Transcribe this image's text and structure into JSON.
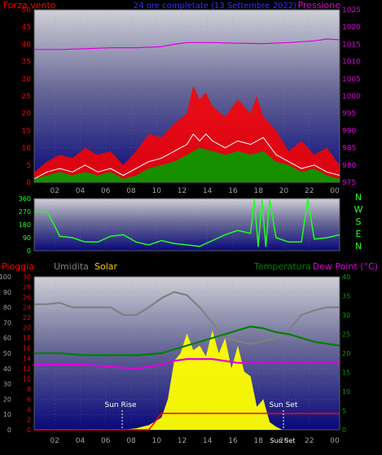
{
  "colors": {
    "background": "#000000",
    "frame": "#5a5a5a",
    "red": "#ff0000",
    "green": "#00a000",
    "magenta": "#e000e0",
    "white": "#ffffff",
    "bright_green": "#22ff22",
    "blue": "#3030ff",
    "gray": "#808080",
    "yellow": "#ffff00",
    "orange": "#ffcc00",
    "dark_green": "#008000",
    "tick_label": "#a0a0a0"
  },
  "x_tick_labels": [
    "02",
    "04",
    "06",
    "08",
    "10",
    "12",
    "14",
    "16",
    "18",
    "20",
    "22",
    "00"
  ],
  "panel1": {
    "left_title": "Forza vento",
    "center_title": "24 ore completate (13 Settembre 2022)",
    "right_title": "Pressione",
    "y_left_ticks": [
      "0",
      "5",
      "10",
      "15",
      "20",
      "25",
      "30",
      "35",
      "40",
      "45",
      "50"
    ],
    "y_right_ticks": [
      "975",
      "980",
      "985",
      "990",
      "995",
      "1000",
      "1005",
      "1010",
      "1015",
      "1020",
      "1025"
    ]
  },
  "panel2": {
    "y_ticks": [
      "0",
      "90",
      "180",
      "270",
      "360"
    ],
    "compass": [
      "N",
      "W",
      "S",
      "E",
      "N"
    ]
  },
  "panel3": {
    "title_rain": "Pioggia",
    "title_humidity": "Umidita",
    "title_solar": "Solar",
    "title_temperature": "Temperatura",
    "title_dewpoint": "Dew Point (°C)",
    "y_humidity_ticks": [
      "0",
      "10",
      "20",
      "30",
      "40",
      "50",
      "60",
      "70",
      "80",
      "90",
      "100"
    ],
    "y_rain_ticks": [
      "0",
      "2",
      "4",
      "6",
      "8",
      "10",
      "12",
      "14",
      "16",
      "18",
      "20",
      "22",
      "24",
      "26",
      "28",
      "30"
    ],
    "y_temp_ticks": [
      "0",
      "5",
      "10",
      "15",
      "20",
      "25",
      "30",
      "35",
      "40"
    ],
    "sun_rise_label": "Sun Rise",
    "sun_set_label": "Sun Set",
    "sun_set_time_label": "Sun Set"
  },
  "chart_data": [
    {
      "type": "line",
      "title": "24 ore completate (13 Settembre 2022)",
      "x_unit": "hour",
      "xlim": [
        0,
        24
      ],
      "ylim_left": [
        0,
        50
      ],
      "ylim_right": [
        975,
        1025
      ],
      "series": [
        {
          "name": "Forza vento",
          "axis": "left",
          "style": "gust",
          "x": [
            0,
            1,
            2,
            3,
            4,
            5,
            6,
            7,
            8,
            9,
            10,
            11,
            12,
            12.5,
            13,
            13.5,
            14,
            15,
            16,
            17,
            17.5,
            18,
            19,
            20,
            21,
            22,
            23,
            24
          ],
          "values": [
            3,
            6,
            8,
            7,
            10,
            8,
            9,
            5,
            9,
            14,
            13,
            17,
            20,
            28,
            24,
            26,
            22,
            19,
            24,
            20,
            25,
            19,
            15,
            9,
            12,
            8,
            10,
            5
          ]
        },
        {
          "axis": "left",
          "style": "avg",
          "x": [
            0,
            1,
            2,
            3,
            4,
            5,
            6,
            7,
            8,
            9,
            10,
            11,
            12,
            12.5,
            13,
            13.5,
            14,
            15,
            16,
            17,
            18,
            19,
            20,
            21,
            22,
            23,
            24
          ],
          "values": [
            1,
            3,
            4,
            3,
            5,
            3,
            4,
            2,
            4,
            6,
            7,
            9,
            11,
            14,
            12,
            14,
            12,
            10,
            12,
            11,
            13,
            8,
            6,
            4,
            5,
            3,
            2
          ]
        },
        {
          "axis": "left",
          "style": "mean",
          "x": [
            0,
            1,
            2,
            3,
            4,
            5,
            6,
            7,
            8,
            9,
            10,
            11,
            12,
            13,
            14,
            15,
            16,
            17,
            18,
            19,
            20,
            21,
            22,
            23,
            24
          ],
          "values": [
            1,
            2,
            3,
            2,
            3,
            2,
            3,
            1,
            2,
            4,
            5,
            6,
            8,
            10,
            9,
            8,
            9,
            8,
            9,
            6,
            5,
            3,
            4,
            2,
            1
          ]
        },
        {
          "name": "Pressione",
          "axis": "right",
          "x": [
            0,
            2,
            4,
            6,
            8,
            10,
            11,
            12,
            14,
            16,
            18,
            20,
            22,
            23,
            24
          ],
          "values": [
            1013.5,
            1013.5,
            1013.7,
            1014,
            1014,
            1014.3,
            1015,
            1015.5,
            1015.5,
            1015.3,
            1015.2,
            1015.5,
            1016,
            1016.5,
            1016.3
          ]
        }
      ]
    },
    {
      "type": "line",
      "x_unit": "hour",
      "xlim": [
        0,
        24
      ],
      "ylim": [
        0,
        360
      ],
      "series": [
        {
          "x": [
            0,
            1,
            1.5,
            2,
            3,
            4,
            5,
            6,
            7,
            8,
            9,
            10,
            11,
            12,
            13,
            14,
            15,
            16,
            17,
            17.3,
            17.6,
            17.9,
            18.2,
            18.5,
            19,
            20,
            21,
            21.5,
            22,
            23,
            24
          ],
          "values": [
            270,
            270,
            190,
            100,
            90,
            60,
            60,
            100,
            110,
            60,
            40,
            70,
            50,
            40,
            30,
            70,
            110,
            140,
            120,
            350,
            30,
            350,
            30,
            350,
            90,
            60,
            60,
            360,
            80,
            90,
            110
          ]
        }
      ]
    },
    {
      "type": "line",
      "x_unit": "hour",
      "xlim": [
        0,
        24
      ],
      "ylim_humidity": [
        0,
        100
      ],
      "ylim_rain": [
        0,
        30
      ],
      "ylim_temperature": [
        0,
        40
      ],
      "series": [
        {
          "name": "Umidita",
          "axis": "humidity",
          "x": [
            0,
            1,
            2,
            3,
            4,
            5,
            6,
            7,
            8,
            9,
            10,
            11,
            12,
            13,
            14,
            15,
            16,
            17,
            18,
            19,
            20,
            21,
            22,
            23,
            24
          ],
          "values": [
            82,
            82,
            83,
            80,
            80,
            80,
            80,
            75,
            75,
            80,
            86,
            90,
            88,
            80,
            70,
            60,
            58,
            56,
            58,
            60,
            65,
            75,
            78,
            80,
            80
          ]
        },
        {
          "name": "Temperatura",
          "axis": "temperature",
          "x": [
            0,
            2,
            4,
            6,
            8,
            10,
            11,
            12,
            13,
            14,
            15,
            16,
            17,
            18,
            19,
            20,
            21,
            22,
            23,
            24
          ],
          "values": [
            20,
            20,
            19.5,
            19.5,
            19.5,
            20,
            21,
            22,
            23,
            24,
            25,
            26,
            27,
            26.5,
            25.5,
            25,
            24,
            23,
            22.5,
            22
          ]
        },
        {
          "name": "Dew Point (°C)",
          "axis": "temperature",
          "x": [
            0,
            2,
            4,
            6,
            8,
            10,
            11,
            12,
            14,
            16,
            18,
            20,
            22,
            24
          ],
          "values": [
            17,
            17,
            17,
            16.5,
            16,
            17,
            18,
            18.5,
            18.5,
            17.5,
            17.5,
            17.5,
            17.5,
            17.5
          ]
        },
        {
          "name": "Pioggia",
          "axis": "rain",
          "x": [
            0,
            9,
            10,
            24
          ],
          "values": [
            0,
            0,
            3.2,
            3.2
          ]
        },
        {
          "name": "Solar",
          "axis": "humidity",
          "x": [
            6.8,
            7.5,
            8,
            9,
            10,
            10.5,
            11,
            11.5,
            12,
            12.5,
            13,
            13.5,
            14,
            14.5,
            15,
            15.5,
            16,
            16.5,
            17,
            17.5,
            18,
            18.5,
            19,
            19.5
          ],
          "values": [
            0,
            0.5,
            1,
            3,
            8,
            20,
            45,
            50,
            63,
            52,
            55,
            48,
            65,
            50,
            60,
            40,
            55,
            38,
            35,
            15,
            20,
            5,
            2,
            0
          ]
        }
      ],
      "annotations": [
        "Sun Rise",
        "Sun Set"
      ]
    }
  ]
}
